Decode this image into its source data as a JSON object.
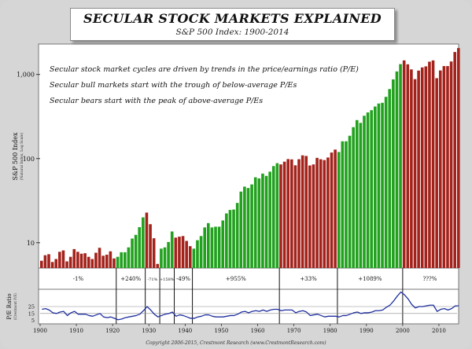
{
  "header": {
    "title": "SECULAR STOCK MARKETS EXPLAINED",
    "subtitle": "S&P 500 Index: 1900-2014"
  },
  "annotations": [
    "Secular stock market cycles are driven by trends in the price/earnings ratio (P/E)",
    "Secular bull markets start with the trough of below-average P/Es",
    "Secular bears start with the peak of above-average P/Es"
  ],
  "footer": {
    "copyright": "Copyright 2006-2015, Crestmont Research (www.CrestmontResearch.com)"
  },
  "colors": {
    "bull": "#22a11f",
    "bear": "#a3231c",
    "pe_line": "#1f2f9e",
    "background": "#ffffff"
  },
  "chart_data": [
    {
      "type": "bar",
      "title": "SECULAR STOCK MARKETS EXPLAINED",
      "subtitle": "S&P 500 Index: 1900-2014",
      "ylabel": "S&P 500 Index",
      "ylabel_sub": "(Natural Index, Log Scale)",
      "yscale": "log",
      "ylim": [
        5,
        2300
      ],
      "yticks": [
        10,
        100,
        1000
      ],
      "ytick_labels": [
        "10",
        "100",
        "1,000"
      ],
      "xlim": [
        1900,
        2014
      ],
      "xticks": [
        1900,
        1910,
        1920,
        1930,
        1940,
        1950,
        1960,
        1970,
        1980,
        1990,
        2000,
        2010
      ],
      "xtick_labels": [
        "1900",
        "1910",
        "1920",
        "1930",
        "1940",
        "1950",
        "1960",
        "1970",
        "1980",
        "1990",
        "2000",
        "2010"
      ],
      "grid": false,
      "year_start": 1900,
      "values": [
        6.1,
        7.1,
        7.3,
        5.9,
        6.4,
        7.8,
        8.1,
        6.0,
        6.8,
        8.4,
        7.8,
        7.4,
        7.5,
        6.8,
        6.4,
        7.6,
        8.7,
        7.0,
        7.2,
        7.9,
        6.5,
        6.8,
        7.7,
        7.7,
        8.8,
        11.2,
        12.4,
        15.3,
        20.0,
        22.8,
        16.6,
        11.3,
        5.6,
        8.5,
        8.8,
        10.2,
        13.6,
        11.5,
        11.8,
        12.0,
        10.5,
        9.1,
        8.5,
        10.7,
        12.0,
        15.2,
        17.1,
        15.2,
        15.5,
        15.5,
        18.4,
        22.3,
        24.5,
        24.8,
        29.7,
        40.5,
        46.4,
        44.7,
        49.3,
        59.9,
        58.1,
        66.3,
        62.3,
        69.9,
        81.4,
        88.2,
        85.3,
        91.9,
        98.7,
        97.8,
        83.2,
        98.3,
        109.2,
        107.4,
        82.8,
        85.2,
        102.0,
        98.2,
        96.0,
        103.0,
        118.0,
        128.0,
        119.7,
        160.4,
        160.5,
        186.8,
        236.3,
        286.8,
        265.8,
        322.8,
        353.4,
        376.0,
        415.7,
        451.4,
        460.4,
        541.7,
        670.5,
        873.4,
        1085.5,
        1327.3,
        1469.3,
        1320.3,
        1148.1,
        879.8,
        1111.9,
        1211.9,
        1248.3,
        1418.3,
        1468.4,
        903.3,
        1115.1,
        1257.6,
        1257.6,
        1426.2,
        1848.4,
        2058.9
      ],
      "regimes": [
        {
          "start": 1900,
          "end": 1920,
          "type": "bear",
          "change": "-1%"
        },
        {
          "start": 1921,
          "end": 1928,
          "type": "bull",
          "change": "+240%"
        },
        {
          "start": 1929,
          "end": 1932,
          "type": "bear",
          "change": "-71%"
        },
        {
          "start": 1933,
          "end": 1936,
          "type": "bull",
          "change": "+158%"
        },
        {
          "start": 1937,
          "end": 1941,
          "type": "bear",
          "change": "-49%"
        },
        {
          "start": 1942,
          "end": 1965,
          "type": "bull",
          "change": "+955%"
        },
        {
          "start": 1966,
          "end": 1981,
          "type": "bear",
          "change": "+33%"
        },
        {
          "start": 1982,
          "end": 1999,
          "type": "bull",
          "change": "+1089%"
        },
        {
          "start": 2000,
          "end": 2014,
          "type": "bear",
          "change": "???%"
        }
      ]
    },
    {
      "type": "line",
      "ylabel": "P/E Ratio",
      "ylabel_sub": "(Crestmont P/E)",
      "ylim": [
        0,
        50
      ],
      "yticks": [
        5,
        15,
        25
      ],
      "ytick_labels": [
        "5",
        "15",
        "25"
      ],
      "reference_lines": [
        15,
        25
      ],
      "xlim": [
        1900,
        2014
      ],
      "year_start": 1900,
      "values": [
        21,
        22,
        20,
        16,
        15,
        17,
        18,
        12,
        16,
        18,
        14,
        14,
        14,
        12,
        11,
        13,
        15,
        10,
        9,
        10,
        8,
        6,
        7,
        9,
        10,
        11,
        12,
        14,
        19,
        25,
        20,
        14,
        10,
        12,
        14,
        15,
        17,
        11,
        13,
        12,
        10,
        8,
        8,
        10,
        11,
        13,
        13,
        11,
        10,
        10,
        10,
        11,
        12,
        12,
        14,
        17,
        18,
        16,
        18,
        19,
        18,
        20,
        18,
        20,
        21,
        21,
        19,
        20,
        20,
        20,
        16,
        18,
        19,
        17,
        12,
        13,
        14,
        12,
        10,
        11,
        11,
        11,
        10,
        12,
        12,
        14,
        16,
        17,
        15,
        16,
        16,
        17,
        19,
        19,
        20,
        24,
        27,
        33,
        40,
        46,
        42,
        36,
        28,
        23,
        25,
        25,
        26,
        27,
        27,
        18,
        21,
        22,
        20,
        22,
        26,
        26
      ]
    }
  ]
}
